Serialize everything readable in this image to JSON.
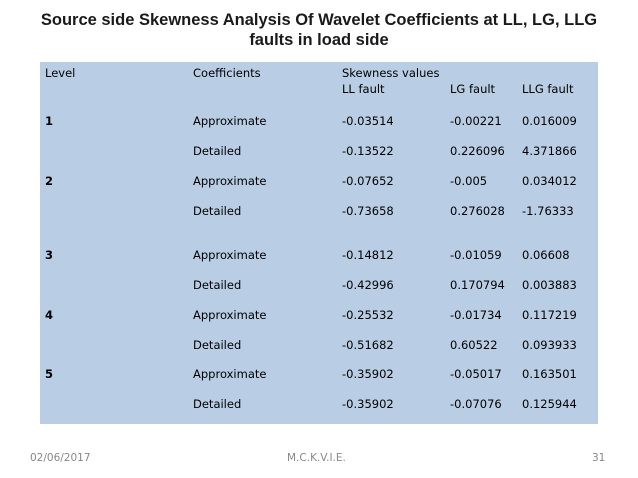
{
  "slide": {
    "title": "Source side Skewness Analysis Of Wavelet Coefficients at LL, LG, LLG faults in load side"
  },
  "table": {
    "headers": {
      "level": "Level",
      "coefficients": "Coefficients",
      "skewness": "Skewness values",
      "ll": "LL fault",
      "lg": "LG fault",
      "llg": "LLG fault"
    },
    "rows": [
      {
        "level": "1",
        "coef": "Approximate",
        "ll": "-0.03514",
        "lg": "-0.00221",
        "llg": "0.016009"
      },
      {
        "level": "",
        "coef": "Detailed",
        "ll": "-0.13522",
        "lg": "0.226096",
        "llg": "4.371866"
      },
      {
        "level": "2",
        "coef": "Approximate",
        "ll": "-0.07652",
        "lg": "-0.005",
        "llg": "0.034012"
      },
      {
        "level": "",
        "coef": "Detailed",
        "ll": "-0.73658",
        "lg": "0.276028",
        "llg": "-1.76333"
      },
      {
        "level": "3",
        "coef": "Approximate",
        "ll": "-0.14812",
        "lg": "-0.01059",
        "llg": "0.06608"
      },
      {
        "level": "",
        "coef": "Detailed",
        "ll": "-0.42996",
        "lg": "0.170794",
        "llg": "0.003883"
      },
      {
        "level": "4",
        "coef": "Approximate",
        "ll": "-0.25532",
        "lg": "-0.01734",
        "llg": "0.117219"
      },
      {
        "level": "",
        "coef": "Detailed",
        "ll": "-0.51682",
        "lg": "0.60522",
        "llg": "0.093933"
      },
      {
        "level": "5",
        "coef": "Approximate",
        "ll": "-0.35902",
        "lg": "-0.05017",
        "llg": "0.163501"
      },
      {
        "level": "",
        "coef": "Detailed",
        "ll": "-0.35902",
        "lg": "-0.07076",
        "llg": "0.125944"
      }
    ]
  },
  "footer": {
    "date": "02/06/2017",
    "org": "M.C.K.V.I.E.",
    "page": "31"
  },
  "colors": {
    "panel_background": "#b9cde5",
    "footer_text": "#888888"
  }
}
